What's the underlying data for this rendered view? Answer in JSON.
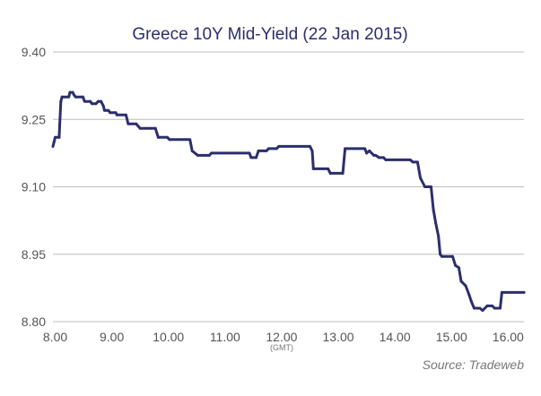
{
  "chart_data": {
    "type": "line",
    "title": "Greece 10Y Mid-Yield (22 Jan 2015)",
    "x_unit_label": "(GMT)",
    "source": "Source: Tradeweb",
    "xlim": [
      7.96,
      16.28
    ],
    "ylim": [
      8.8,
      9.4
    ],
    "x_ticks": [
      {
        "v": 8.0,
        "label": "8.00"
      },
      {
        "v": 9.0,
        "label": "9.00"
      },
      {
        "v": 10.0,
        "label": "10.00"
      },
      {
        "v": 11.0,
        "label": "11.00"
      },
      {
        "v": 12.0,
        "label": "12.00"
      },
      {
        "v": 13.0,
        "label": "13.00"
      },
      {
        "v": 14.0,
        "label": "14.00"
      },
      {
        "v": 15.0,
        "label": "15.00"
      },
      {
        "v": 16.0,
        "label": "16.00"
      }
    ],
    "y_ticks": [
      {
        "v": 9.4,
        "label": "9.40"
      },
      {
        "v": 9.25,
        "label": "9.25"
      },
      {
        "v": 9.1,
        "label": "9.10"
      },
      {
        "v": 8.95,
        "label": "8.95"
      },
      {
        "v": 8.8,
        "label": "8.80"
      }
    ],
    "grid": "horizontal",
    "series": [
      {
        "color": "#2b2f6b",
        "points": [
          [
            7.96,
            9.19
          ],
          [
            7.98,
            9.2
          ],
          [
            8.0,
            9.21
          ],
          [
            8.07,
            9.21
          ],
          [
            8.08,
            9.24
          ],
          [
            8.1,
            9.29
          ],
          [
            8.12,
            9.3
          ],
          [
            8.24,
            9.3
          ],
          [
            8.26,
            9.31
          ],
          [
            8.31,
            9.31
          ],
          [
            8.33,
            9.305
          ],
          [
            8.36,
            9.3
          ],
          [
            8.49,
            9.3
          ],
          [
            8.52,
            9.29
          ],
          [
            8.62,
            9.29
          ],
          [
            8.65,
            9.285
          ],
          [
            8.72,
            9.285
          ],
          [
            8.76,
            9.29
          ],
          [
            8.81,
            9.29
          ],
          [
            8.85,
            9.28
          ],
          [
            8.87,
            9.27
          ],
          [
            8.94,
            9.27
          ],
          [
            8.97,
            9.265
          ],
          [
            9.07,
            9.265
          ],
          [
            9.09,
            9.26
          ],
          [
            9.25,
            9.26
          ],
          [
            9.29,
            9.24
          ],
          [
            9.43,
            9.24
          ],
          [
            9.5,
            9.23
          ],
          [
            9.77,
            9.23
          ],
          [
            9.82,
            9.21
          ],
          [
            9.98,
            9.21
          ],
          [
            10.02,
            9.205
          ],
          [
            10.38,
            9.205
          ],
          [
            10.42,
            9.18
          ],
          [
            10.52,
            9.17
          ],
          [
            10.72,
            9.17
          ],
          [
            10.76,
            9.175
          ],
          [
            11.43,
            9.175
          ],
          [
            11.46,
            9.165
          ],
          [
            11.55,
            9.165
          ],
          [
            11.59,
            9.18
          ],
          [
            11.73,
            9.18
          ],
          [
            11.77,
            9.185
          ],
          [
            11.91,
            9.185
          ],
          [
            11.95,
            9.19
          ],
          [
            12.5,
            9.19
          ],
          [
            12.54,
            9.18
          ],
          [
            12.56,
            9.14
          ],
          [
            12.82,
            9.14
          ],
          [
            12.86,
            9.13
          ],
          [
            13.08,
            9.13
          ],
          [
            13.12,
            9.185
          ],
          [
            13.47,
            9.185
          ],
          [
            13.5,
            9.175
          ],
          [
            13.55,
            9.18
          ],
          [
            13.63,
            9.17
          ],
          [
            13.66,
            9.17
          ],
          [
            13.72,
            9.165
          ],
          [
            13.8,
            9.165
          ],
          [
            13.84,
            9.16
          ],
          [
            14.27,
            9.16
          ],
          [
            14.32,
            9.155
          ],
          [
            14.4,
            9.155
          ],
          [
            14.45,
            9.12
          ],
          [
            14.53,
            9.1
          ],
          [
            14.64,
            9.1
          ],
          [
            14.68,
            9.05
          ],
          [
            14.72,
            9.02
          ],
          [
            14.77,
            8.99
          ],
          [
            14.8,
            8.95
          ],
          [
            14.83,
            8.945
          ],
          [
            15.02,
            8.945
          ],
          [
            15.07,
            8.925
          ],
          [
            15.13,
            8.92
          ],
          [
            15.17,
            8.89
          ],
          [
            15.25,
            8.88
          ],
          [
            15.31,
            8.86
          ],
          [
            15.35,
            8.845
          ],
          [
            15.4,
            8.83
          ],
          [
            15.5,
            8.83
          ],
          [
            15.55,
            8.825
          ],
          [
            15.63,
            8.835
          ],
          [
            15.72,
            8.835
          ],
          [
            15.76,
            8.83
          ],
          [
            15.86,
            8.83
          ],
          [
            15.89,
            8.865
          ],
          [
            16.28,
            8.865
          ]
        ]
      }
    ]
  }
}
